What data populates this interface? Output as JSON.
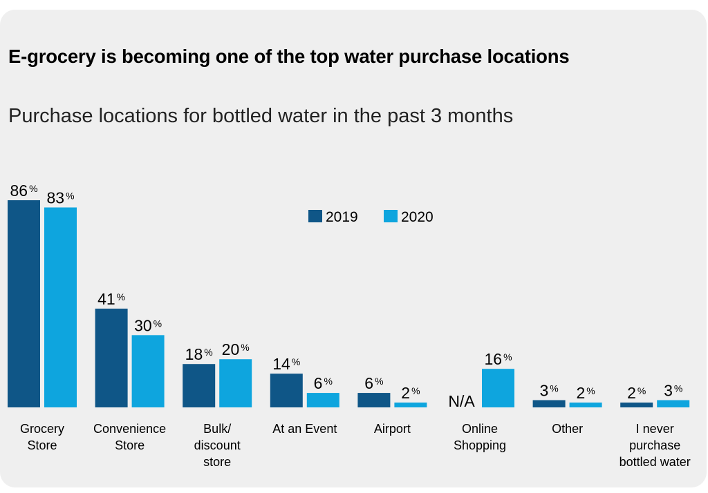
{
  "chart_data": {
    "type": "bar",
    "title": "E-grocery is becoming one of the top water purchase locations",
    "subtitle": "Purchase locations for bottled water in the past 3 months",
    "categories": [
      [
        "Grocery",
        "Store"
      ],
      [
        "Convenience",
        "Store"
      ],
      [
        "Bulk/",
        "discount",
        "store"
      ],
      [
        "At an Event"
      ],
      [
        "Airport"
      ],
      [
        "Online",
        "Shopping"
      ],
      [
        "Other"
      ],
      [
        "I never",
        "purchase",
        "bottled water"
      ]
    ],
    "series": [
      {
        "name": "2019",
        "color": "#0f5687",
        "values": [
          86,
          41,
          18,
          14,
          6,
          null,
          3,
          2
        ]
      },
      {
        "name": "2020",
        "color": "#0ea5de",
        "values": [
          83,
          30,
          20,
          6,
          2,
          16,
          2,
          3
        ]
      }
    ],
    "value_suffix": "%",
    "missing_label": "N/A",
    "legend": "top-center",
    "ylim": [
      0,
      86
    ],
    "grid": false
  }
}
